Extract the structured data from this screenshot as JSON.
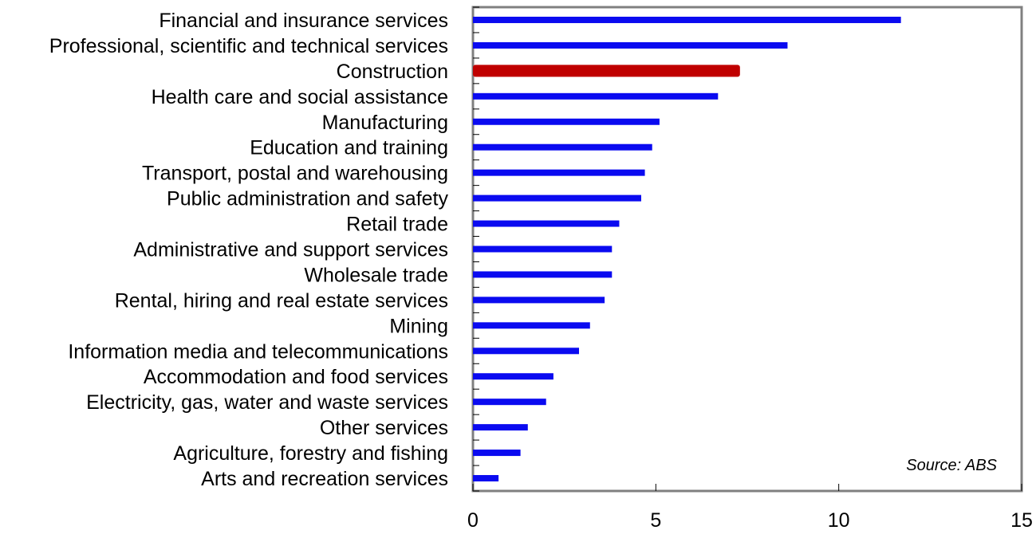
{
  "chart_data": {
    "type": "bar",
    "orientation": "horizontal",
    "categories": [
      "Financial and insurance services",
      "Professional, scientific and technical services",
      "Construction",
      "Health care and social assistance",
      "Manufacturing",
      "Education and training",
      "Transport, postal and warehousing",
      "Public administration and safety",
      "Retail trade",
      "Administrative and support services",
      "Wholesale trade",
      "Rental, hiring and real estate services",
      "Mining",
      "Information media and telecommunications",
      "Accommodation and food services",
      "Electricity, gas, water and waste services",
      "Other services",
      "Agriculture, forestry and fishing",
      "Arts and recreation services"
    ],
    "values": [
      11.7,
      8.6,
      7.3,
      6.7,
      5.1,
      4.9,
      4.7,
      4.6,
      4.0,
      3.8,
      3.8,
      3.6,
      3.2,
      2.9,
      2.2,
      2.0,
      1.5,
      1.3,
      0.7
    ],
    "highlight": "Construction",
    "colors": {
      "bar": "#0a0af0",
      "highlight": "#c00000",
      "frame": "#808080"
    },
    "xlim": [
      0,
      15
    ],
    "xticks": [
      "0",
      "5",
      "10",
      "15"
    ],
    "grid": false,
    "title": "",
    "xlabel": "",
    "ylabel": "",
    "annotation": "Source: ABS"
  }
}
